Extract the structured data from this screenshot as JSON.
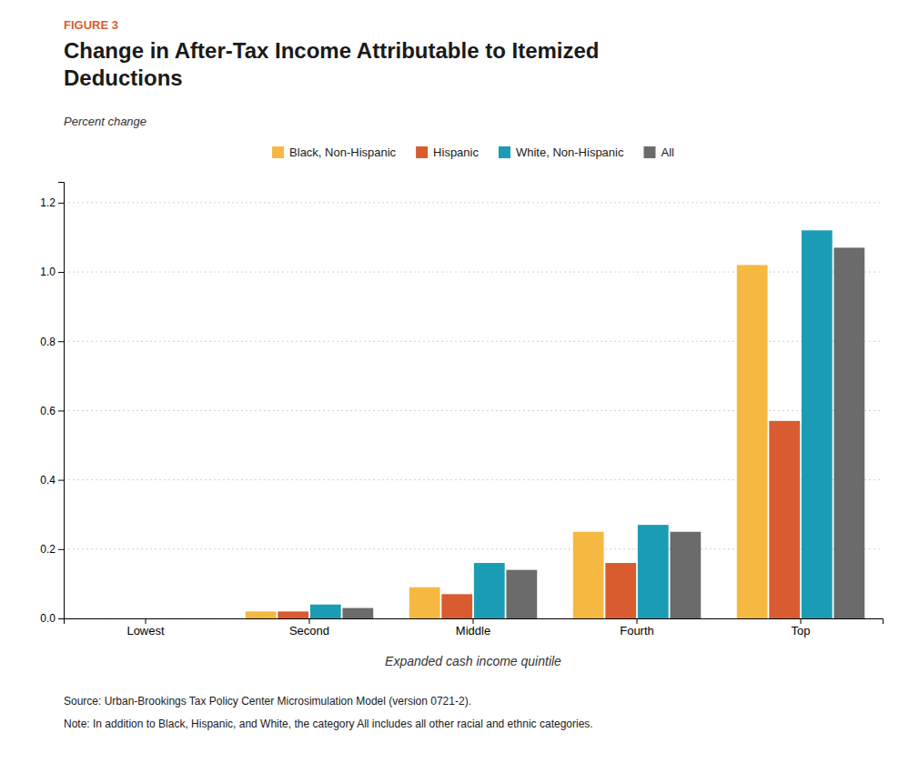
{
  "chart_data": {
    "type": "bar",
    "figure_label": "FIGURE 3",
    "title": "Change in After-Tax Income Attributable to Itemized\nDeductions",
    "subtitle": "Percent change",
    "x_label": "Expanded cash income quintile",
    "categories": [
      "Lowest",
      "Second",
      "Middle",
      "Fourth",
      "Top"
    ],
    "series": [
      {
        "name": "Black, Non-Hispanic",
        "color": "#F5B942",
        "values": [
          0.0,
          0.02,
          0.09,
          0.25,
          1.02
        ]
      },
      {
        "name": "Hispanic",
        "color": "#D95B30",
        "values": [
          0.0,
          0.02,
          0.07,
          0.16,
          0.57
        ]
      },
      {
        "name": "White, Non-Hispanic",
        "color": "#1B9CB5",
        "values": [
          0.0,
          0.04,
          0.16,
          0.27,
          1.12
        ]
      },
      {
        "name": "All",
        "color": "#6B6B6B",
        "values": [
          0.0,
          0.03,
          0.14,
          0.25,
          1.07
        ]
      }
    ],
    "ylim": [
      0,
      1.26
    ],
    "yticks": [
      {
        "value": 0.0,
        "label": "0.0"
      },
      {
        "value": 0.2,
        "label": "0.2"
      },
      {
        "value": 0.4,
        "label": "0.4"
      },
      {
        "value": 0.6,
        "label": "0.6"
      },
      {
        "value": 0.8,
        "label": "0.8"
      },
      {
        "value": 1.0,
        "label": "1.0"
      },
      {
        "value": 1.2,
        "label": "1.2"
      }
    ],
    "grid": true,
    "legend": "top",
    "source": "Source: Urban-Brookings Tax Policy Center Microsimulation Model (version 0721-2).",
    "note": "Note: In addition to Black, Hispanic, and White, the category All includes all other racial and ethnic categories."
  }
}
